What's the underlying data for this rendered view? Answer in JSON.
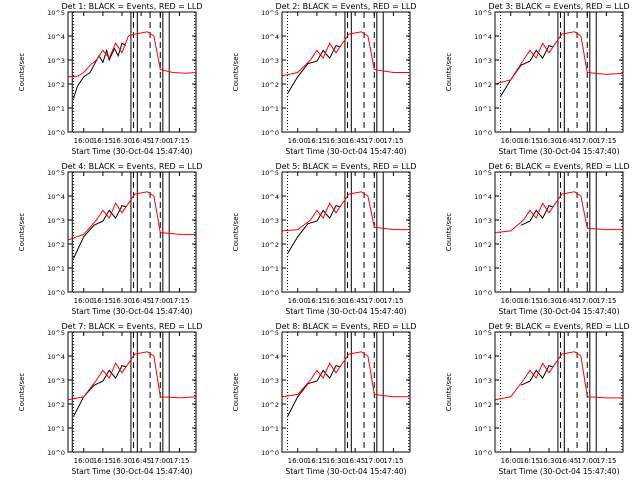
{
  "colors": {
    "events": "#000000",
    "lld": "#ff0000",
    "background": "#ffffff",
    "axes": "#000000"
  },
  "chart_data": [
    {
      "type": "line",
      "title": "Det 1: BLACK = Events, RED = LLD",
      "xlabel": "Start Time (30-Oct-04 15:47:40)",
      "ylabel": "Counts/sec",
      "x_ticks": [
        "16:00",
        "16:15",
        "16:30",
        "16:45",
        "17:00",
        "17:15"
      ],
      "y_ticks": [
        "10^0",
        "10^1",
        "10^2",
        "10^3",
        "10^4",
        "10^5"
      ],
      "y_scale": "log",
      "xlim": [
        "15:47:40",
        "17:28:00"
      ],
      "ylim": [
        1,
        100000
      ],
      "solid_lines": [
        "15:51",
        "16:37",
        "16:42",
        "17:02",
        "17:07"
      ],
      "dashed_lines": [
        "16:39",
        "16:52",
        "17:00"
      ],
      "dotted_lines": [
        "15:52",
        "17:27"
      ],
      "series": [
        {
          "name": "BLACK = Events",
          "color": "black",
          "x": [
            "15:52",
            "15:55",
            "16:00",
            "16:05",
            "16:08",
            "16:12",
            "16:15",
            "16:18",
            "16:20",
            "16:24",
            "16:27",
            "16:30",
            "16:33"
          ],
          "y": [
            25,
            80,
            200,
            300,
            600,
            1500,
            800,
            2500,
            1000,
            3000,
            1500,
            5000,
            4000
          ]
        },
        {
          "name": "RED = LLD",
          "color": "red",
          "x": [
            "15:48",
            "15:55",
            "16:00",
            "16:05",
            "16:10",
            "16:15",
            "16:20",
            "16:25",
            "16:30",
            "16:35",
            "16:40",
            "16:50",
            "16:55",
            "17:00",
            "17:10",
            "17:20",
            "17:28"
          ],
          "y": [
            200,
            210,
            300,
            600,
            1000,
            2500,
            1200,
            5000,
            2000,
            10000,
            12000,
            15000,
            10000,
            400,
            300,
            280,
            300
          ]
        }
      ]
    },
    {
      "type": "line",
      "title": "Det 2: BLACK = Events, RED = LLD",
      "xlabel": "Start Time (30-Oct-04 15:47:40)",
      "ylabel": "Counts/sec",
      "x_ticks": [
        "16:00",
        "16:15",
        "16:30",
        "16:45",
        "17:00",
        "17:15"
      ],
      "y_ticks": [
        "10^0",
        "10^1",
        "10^2",
        "10^3",
        "10^4",
        "10^5"
      ],
      "y_scale": "log",
      "xlim": [
        "15:47:40",
        "17:28:00"
      ],
      "ylim": [
        1,
        100000
      ],
      "solid_lines": [
        "16:37",
        "16:42",
        "17:02",
        "17:07"
      ],
      "dashed_lines": [
        "16:39",
        "16:52",
        "17:00"
      ],
      "dotted_lines": [
        "15:52",
        "17:27"
      ],
      "series": [
        {
          "name": "BLACK = Events",
          "color": "black",
          "x": [
            "15:52",
            "16:00",
            "16:08",
            "16:15",
            "16:20",
            "16:25",
            "16:30",
            "16:33"
          ],
          "y": [
            40,
            200,
            700,
            900,
            2500,
            1200,
            4000,
            3500
          ]
        },
        {
          "name": "RED = LLD",
          "color": "red",
          "x": [
            "15:48",
            "16:00",
            "16:10",
            "16:15",
            "16:20",
            "16:25",
            "16:30",
            "16:40",
            "16:50",
            "16:55",
            "17:00",
            "17:15",
            "17:28"
          ],
          "y": [
            220,
            300,
            1000,
            2500,
            1200,
            5000,
            2000,
            12000,
            15000,
            10000,
            400,
            300,
            300
          ]
        }
      ]
    },
    {
      "type": "line",
      "title": "Det 3: BLACK = Events, RED = LLD",
      "xlabel": "Start Time (30-Oct-04 15:47:40)",
      "ylabel": "Counts/sec",
      "x_ticks": [
        "16:00",
        "16:15",
        "16:30",
        "16:45",
        "17:00",
        "17:15"
      ],
      "y_ticks": [
        "10^0",
        "10^1",
        "10^2",
        "10^3",
        "10^4",
        "10^5"
      ],
      "y_scale": "log",
      "xlim": [
        "15:47:40",
        "17:28:00"
      ],
      "ylim": [
        1,
        100000
      ],
      "solid_lines": [
        "16:37",
        "16:42",
        "17:02",
        "17:07"
      ],
      "dashed_lines": [
        "16:39",
        "16:52",
        "17:00"
      ],
      "dotted_lines": [
        "15:52",
        "17:27"
      ],
      "series": [
        {
          "name": "BLACK = Events",
          "color": "black",
          "x": [
            "15:52",
            "16:00",
            "16:08",
            "16:15",
            "16:20",
            "16:25",
            "16:30",
            "16:33"
          ],
          "y": [
            30,
            150,
            600,
            900,
            2500,
            1200,
            4000,
            3500
          ]
        },
        {
          "name": "RED = LLD",
          "color": "red",
          "x": [
            "15:48",
            "16:00",
            "16:10",
            "16:15",
            "16:20",
            "16:25",
            "16:30",
            "16:40",
            "16:50",
            "16:55",
            "17:00",
            "17:15",
            "17:28"
          ],
          "y": [
            100,
            150,
            1000,
            2500,
            1200,
            5000,
            2000,
            12000,
            15000,
            10000,
            300,
            250,
            280
          ]
        }
      ]
    },
    {
      "type": "line",
      "title": "Det 4: BLACK = Events, RED = LLD",
      "xlabel": "Start Time (30-Oct-04 15:47:40)",
      "ylabel": "Counts/sec",
      "x_ticks": [
        "16:00",
        "16:15",
        "16:30",
        "16:45",
        "17:00",
        "17:15"
      ],
      "y_ticks": [
        "10^0",
        "10^1",
        "10^2",
        "10^3",
        "10^4",
        "10^5"
      ],
      "y_scale": "log",
      "xlim": [
        "15:47:40",
        "17:28:00"
      ],
      "ylim": [
        1,
        100000
      ],
      "solid_lines": [
        "15:51",
        "16:37",
        "16:42",
        "17:02",
        "17:07"
      ],
      "dashed_lines": [
        "16:39",
        "16:52",
        "17:00"
      ],
      "dotted_lines": [
        "15:52",
        "17:27"
      ],
      "series": [
        {
          "name": "BLACK = Events",
          "color": "black",
          "x": [
            "15:52",
            "16:00",
            "16:08",
            "16:15",
            "16:20",
            "16:25",
            "16:30",
            "16:33"
          ],
          "y": [
            25,
            200,
            600,
            900,
            2500,
            1200,
            4000,
            3500
          ]
        },
        {
          "name": "RED = LLD",
          "color": "red",
          "x": [
            "15:48",
            "16:00",
            "16:10",
            "16:15",
            "16:20",
            "16:25",
            "16:30",
            "16:40",
            "16:50",
            "16:55",
            "17:00",
            "17:15",
            "17:28"
          ],
          "y": [
            150,
            250,
            1000,
            2500,
            1200,
            5000,
            2000,
            12000,
            15000,
            10000,
            300,
            250,
            250
          ]
        }
      ]
    },
    {
      "type": "line",
      "title": "Det 5: BLACK = Events, RED = LLD",
      "xlabel": "Start Time (30-Oct-04 15:47:40)",
      "ylabel": "Counts/sec",
      "x_ticks": [
        "16:00",
        "16:15",
        "16:30",
        "16:45",
        "17:00",
        "17:15"
      ],
      "y_ticks": [
        "10^0",
        "10^1",
        "10^2",
        "10^3",
        "10^4",
        "10^5"
      ],
      "y_scale": "log",
      "xlim": [
        "15:47:40",
        "17:28:00"
      ],
      "ylim": [
        1,
        100000
      ],
      "solid_lines": [
        "16:37",
        "16:42",
        "17:02",
        "17:07"
      ],
      "dashed_lines": [
        "16:39",
        "16:52",
        "17:00"
      ],
      "dotted_lines": [
        "15:52",
        "17:27"
      ],
      "series": [
        {
          "name": "BLACK = Events",
          "color": "black",
          "x": [
            "15:52",
            "16:00",
            "16:08",
            "16:15",
            "16:20",
            "16:25",
            "16:30",
            "16:33"
          ],
          "y": [
            40,
            200,
            700,
            900,
            2500,
            1200,
            4000,
            3500
          ]
        },
        {
          "name": "RED = LLD",
          "color": "red",
          "x": [
            "15:48",
            "16:00",
            "16:10",
            "16:15",
            "16:20",
            "16:25",
            "16:30",
            "16:40",
            "16:50",
            "16:55",
            "17:00",
            "17:15",
            "17:28"
          ],
          "y": [
            350,
            400,
            1000,
            2500,
            1200,
            5000,
            2000,
            12000,
            15000,
            10000,
            500,
            400,
            400
          ]
        }
      ]
    },
    {
      "type": "line",
      "title": "Det 6: BLACK = Events, RED = LLD",
      "xlabel": "Start Time (30-Oct-04 15:47:40)",
      "ylabel": "Counts/sec",
      "x_ticks": [
        "16:00",
        "16:15",
        "16:30",
        "16:45",
        "17:00",
        "17:15"
      ],
      "y_ticks": [
        "10^0",
        "10^1",
        "10^2",
        "10^3",
        "10^4",
        "10^5"
      ],
      "y_scale": "log",
      "xlim": [
        "15:47:40",
        "17:28:00"
      ],
      "ylim": [
        1,
        100000
      ],
      "solid_lines": [
        "16:37",
        "16:42",
        "17:02",
        "17:07"
      ],
      "dashed_lines": [
        "16:39",
        "16:52",
        "17:00"
      ],
      "dotted_lines": [
        "15:52",
        "17:27"
      ],
      "series": [
        {
          "name": "BLACK = Events",
          "color": "black",
          "x": [
            "16:08",
            "16:15",
            "16:20",
            "16:25",
            "16:30",
            "16:33"
          ],
          "y": [
            600,
            900,
            2500,
            1200,
            4000,
            3500
          ]
        },
        {
          "name": "RED = LLD",
          "color": "red",
          "x": [
            "15:48",
            "16:00",
            "16:10",
            "16:15",
            "16:20",
            "16:25",
            "16:30",
            "16:40",
            "16:50",
            "16:55",
            "17:00",
            "17:15",
            "17:28"
          ],
          "y": [
            300,
            350,
            1000,
            2500,
            1200,
            5000,
            2000,
            12000,
            15000,
            10000,
            450,
            400,
            400
          ]
        }
      ]
    },
    {
      "type": "line",
      "title": "Det 7: BLACK = Events, RED = LLD",
      "xlabel": "Start Time (30-Oct-04 15:47:40)",
      "ylabel": "Counts/sec",
      "x_ticks": [
        "16:00",
        "16:15",
        "16:30",
        "16:45",
        "17:00",
        "17:15"
      ],
      "y_ticks": [
        "10^0",
        "10^1",
        "10^2",
        "10^3",
        "10^4",
        "10^5"
      ],
      "y_scale": "log",
      "xlim": [
        "15:47:40",
        "17:28:00"
      ],
      "ylim": [
        1,
        100000
      ],
      "solid_lines": [
        "15:51",
        "16:37",
        "16:42",
        "17:02",
        "17:07"
      ],
      "dashed_lines": [
        "16:39",
        "16:52",
        "17:00"
      ],
      "dotted_lines": [
        "15:52",
        "17:27"
      ],
      "series": [
        {
          "name": "BLACK = Events",
          "color": "black",
          "x": [
            "15:52",
            "16:00",
            "16:08",
            "16:15",
            "16:20",
            "16:25",
            "16:30",
            "16:33"
          ],
          "y": [
            30,
            200,
            600,
            900,
            2500,
            1200,
            4000,
            3500
          ]
        },
        {
          "name": "RED = LLD",
          "color": "red",
          "x": [
            "15:48",
            "16:00",
            "16:10",
            "16:15",
            "16:20",
            "16:25",
            "16:30",
            "16:40",
            "16:50",
            "16:55",
            "17:00",
            "17:15",
            "17:28"
          ],
          "y": [
            150,
            200,
            1000,
            2500,
            1200,
            5000,
            2000,
            12000,
            15000,
            10000,
            200,
            180,
            200
          ]
        }
      ]
    },
    {
      "type": "line",
      "title": "Det 8: BLACK = Events, RED = LLD",
      "xlabel": "Start Time (30-Oct-04 15:47:40)",
      "ylabel": "Counts/sec",
      "x_ticks": [
        "16:00",
        "16:15",
        "16:30",
        "16:45",
        "17:00",
        "17:15"
      ],
      "y_ticks": [
        "10^0",
        "10^1",
        "10^2",
        "10^3",
        "10^4",
        "10^5"
      ],
      "y_scale": "log",
      "xlim": [
        "15:47:40",
        "17:28:00"
      ],
      "ylim": [
        1,
        100000
      ],
      "solid_lines": [
        "16:37",
        "16:42",
        "17:02",
        "17:07"
      ],
      "dashed_lines": [
        "16:39",
        "16:52",
        "17:00"
      ],
      "dotted_lines": [
        "15:52",
        "17:27"
      ],
      "series": [
        {
          "name": "BLACK = Events",
          "color": "black",
          "x": [
            "15:52",
            "16:00",
            "16:08",
            "16:15",
            "16:20",
            "16:25",
            "16:30",
            "16:33"
          ],
          "y": [
            30,
            200,
            700,
            900,
            2500,
            1200,
            4000,
            3500
          ]
        },
        {
          "name": "RED = LLD",
          "color": "red",
          "x": [
            "15:48",
            "16:00",
            "16:10",
            "16:15",
            "16:20",
            "16:25",
            "16:30",
            "16:40",
            "16:50",
            "16:55",
            "17:00",
            "17:15",
            "17:28"
          ],
          "y": [
            200,
            250,
            1000,
            2500,
            1200,
            5000,
            2000,
            12000,
            15000,
            10000,
            250,
            200,
            200
          ]
        }
      ]
    },
    {
      "type": "line",
      "title": "Det 9: BLACK = Events, RED = LLD",
      "xlabel": "Start Time (30-Oct-04 15:47:40)",
      "ylabel": "Counts/sec",
      "x_ticks": [
        "16:00",
        "16:15",
        "16:30",
        "16:45",
        "17:00",
        "17:15"
      ],
      "y_ticks": [
        "10^0",
        "10^1",
        "10^2",
        "10^3",
        "10^4",
        "10^5"
      ],
      "y_scale": "log",
      "xlim": [
        "15:47:40",
        "17:28:00"
      ],
      "ylim": [
        1,
        100000
      ],
      "solid_lines": [
        "16:37",
        "16:42",
        "17:02",
        "17:07"
      ],
      "dashed_lines": [
        "16:39",
        "16:52",
        "17:00"
      ],
      "dotted_lines": [
        "15:52",
        "17:27"
      ],
      "series": [
        {
          "name": "BLACK = Events",
          "color": "black",
          "x": [
            "16:08",
            "16:15",
            "16:20",
            "16:25",
            "16:30",
            "16:33"
          ],
          "y": [
            600,
            900,
            2500,
            1200,
            4000,
            3500
          ]
        },
        {
          "name": "RED = LLD",
          "color": "red",
          "x": [
            "15:48",
            "16:00",
            "16:10",
            "16:15",
            "16:20",
            "16:25",
            "16:30",
            "16:40",
            "16:50",
            "16:55",
            "17:00",
            "17:15",
            "17:28"
          ],
          "y": [
            150,
            200,
            1000,
            2500,
            1200,
            5000,
            2000,
            12000,
            15000,
            10000,
            200,
            180,
            180
          ]
        }
      ]
    }
  ]
}
